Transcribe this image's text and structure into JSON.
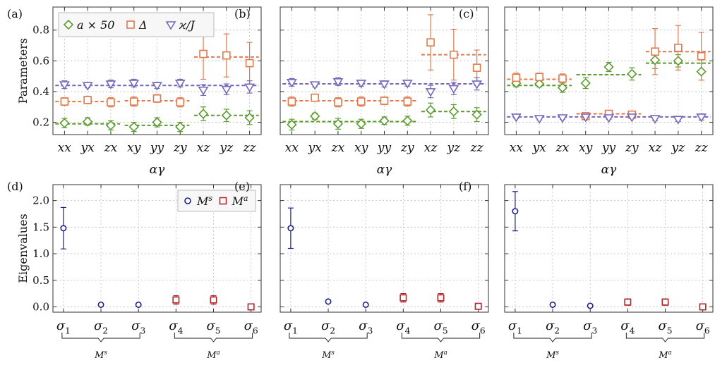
{
  "colors": {
    "a": "#5c9b2f",
    "delta": "#e07a4d",
    "kappa": "#7468b9",
    "Ms": "#1a1f8a",
    "Ma": "#b3262a"
  },
  "chart_data": [
    {
      "panel_label": "(a)",
      "type": "scatter",
      "categories": [
        "xx",
        "yx",
        "zx",
        "xy",
        "yy",
        "zy",
        "xz",
        "yz",
        "zz"
      ],
      "xlabel": "αγ",
      "ylabel": "Parameters",
      "ylim": [
        0.12,
        0.95
      ],
      "yticks": [
        0.2,
        0.4,
        0.6,
        0.8
      ],
      "grid": true,
      "legend": {
        "placement": "top-left",
        "entries": [
          "a × 50",
          "Δ",
          "ϰ/J"
        ]
      },
      "series": [
        {
          "name": "a × 50",
          "key": "a",
          "marker": "diamond",
          "values": [
            0.195,
            0.205,
            0.18,
            0.17,
            0.2,
            0.17,
            0.255,
            0.245,
            0.23
          ],
          "errors": [
            0.03,
            0.025,
            0.03,
            0.03,
            0.03,
            0.03,
            0.045,
            0.04,
            0.045
          ],
          "fits": [
            {
              "from": 0,
              "to": 2,
              "value": 0.19
            },
            {
              "from": 3,
              "to": 5,
              "value": 0.18
            },
            {
              "from": 6,
              "to": 8,
              "value": 0.245
            }
          ]
        },
        {
          "name": "Δ",
          "key": "delta",
          "marker": "square",
          "values": [
            0.335,
            0.345,
            0.33,
            0.335,
            0.355,
            0.33,
            0.645,
            0.635,
            0.585
          ],
          "errors": [
            0.025,
            0.025,
            0.03,
            0.03,
            0.025,
            0.03,
            0.165,
            0.14,
            0.135
          ],
          "fits": [
            {
              "from": 0,
              "to": 2,
              "value": 0.335
            },
            {
              "from": 3,
              "to": 5,
              "value": 0.34
            },
            {
              "from": 6,
              "to": 8,
              "value": 0.625
            }
          ]
        },
        {
          "name": "ϰ/J",
          "key": "kappa",
          "marker": "triangle-down",
          "values": [
            0.445,
            0.44,
            0.45,
            0.455,
            0.44,
            0.455,
            0.41,
            0.415,
            0.43
          ],
          "errors": [
            0.025,
            0.015,
            0.025,
            0.025,
            0.02,
            0.025,
            0.035,
            0.035,
            0.04
          ],
          "fits": [
            {
              "from": 0,
              "to": 8,
              "value": 0.44
            }
          ]
        }
      ]
    },
    {
      "panel_label": "(b)",
      "type": "scatter",
      "categories": [
        "xx",
        "yx",
        "zx",
        "xy",
        "yy",
        "zy",
        "xz",
        "yz",
        "zz"
      ],
      "xlabel": "αγ",
      "ylim": [
        0.12,
        0.95
      ],
      "yticks": [
        0.2,
        0.4,
        0.6,
        0.8
      ],
      "grid": true,
      "series": [
        {
          "key": "a",
          "marker": "diamond",
          "values": [
            0.185,
            0.24,
            0.19,
            0.19,
            0.21,
            0.21,
            0.28,
            0.27,
            0.25
          ],
          "errors": [
            0.035,
            0.02,
            0.035,
            0.03,
            0.025,
            0.03,
            0.045,
            0.045,
            0.045
          ],
          "fits": [
            {
              "from": 0,
              "to": 5,
              "value": 0.205
            },
            {
              "from": 6,
              "to": 8,
              "value": 0.27
            }
          ]
        },
        {
          "key": "delta",
          "marker": "square",
          "values": [
            0.335,
            0.36,
            0.33,
            0.335,
            0.34,
            0.335,
            0.72,
            0.64,
            0.555
          ],
          "errors": [
            0.03,
            0.02,
            0.03,
            0.03,
            0.025,
            0.03,
            0.18,
            0.165,
            0.115
          ],
          "fits": [
            {
              "from": 0,
              "to": 5,
              "value": 0.34
            },
            {
              "from": 6,
              "to": 8,
              "value": 0.64
            }
          ]
        },
        {
          "key": "kappa",
          "marker": "triangle-down",
          "values": [
            0.46,
            0.445,
            0.465,
            0.455,
            0.45,
            0.455,
            0.4,
            0.42,
            0.45
          ],
          "errors": [
            0.025,
            0.015,
            0.025,
            0.02,
            0.02,
            0.02,
            0.04,
            0.04,
            0.04
          ],
          "fits": [
            {
              "from": 0,
              "to": 8,
              "value": 0.45
            }
          ]
        }
      ]
    },
    {
      "panel_label": "(c)",
      "type": "scatter",
      "categories": [
        "xx",
        "yx",
        "zx",
        "xy",
        "yy",
        "zy",
        "xz",
        "yz",
        "zz"
      ],
      "xlabel": "αγ",
      "ylim": [
        0.12,
        0.95
      ],
      "yticks": [
        0.2,
        0.4,
        0.6,
        0.8
      ],
      "grid": true,
      "series": [
        {
          "key": "a",
          "marker": "diamond",
          "values": [
            0.455,
            0.45,
            0.425,
            0.455,
            0.56,
            0.515,
            0.605,
            0.6,
            0.53
          ],
          "errors": [
            0.025,
            0.02,
            0.03,
            0.035,
            0.03,
            0.04,
            0.055,
            0.04,
            0.055
          ],
          "fits": [
            {
              "from": 0,
              "to": 2,
              "value": 0.44
            },
            {
              "from": 3,
              "to": 5,
              "value": 0.51
            },
            {
              "from": 6,
              "to": 8,
              "value": 0.585
            }
          ]
        },
        {
          "key": "delta",
          "marker": "square",
          "values": [
            0.49,
            0.495,
            0.485,
            0.24,
            0.255,
            0.25,
            0.66,
            0.685,
            0.63
          ],
          "errors": [
            0.03,
            0.025,
            0.03,
            0.01,
            0.01,
            0.01,
            0.15,
            0.145,
            0.155
          ],
          "fits": [
            {
              "from": 0,
              "to": 2,
              "value": 0.48
            },
            {
              "from": 3,
              "to": 5,
              "value": 0.255
            },
            {
              "from": 6,
              "to": 8,
              "value": 0.66
            }
          ]
        },
        {
          "key": "kappa",
          "marker": "triangle-down",
          "values": [
            0.235,
            0.225,
            0.23,
            0.235,
            0.23,
            0.235,
            0.225,
            0.22,
            0.235
          ],
          "errors": [
            0.01,
            0.01,
            0.01,
            0.01,
            0.01,
            0.01,
            0.015,
            0.015,
            0.02
          ],
          "fits": [
            {
              "from": 0,
              "to": 8,
              "value": 0.235
            }
          ]
        }
      ]
    },
    {
      "panel_label": "(d)",
      "type": "scatter",
      "categories": [
        "σ1",
        "σ2",
        "σ3",
        "σ4",
        "σ5",
        "σ6"
      ],
      "ylabel": "Eigenvalues",
      "ylim": [
        -0.1,
        2.3
      ],
      "yticks": [
        0.0,
        0.5,
        1.0,
        1.5,
        2.0
      ],
      "grid": true,
      "legend": {
        "placement": "top-right",
        "entries": [
          "Ms",
          "Ma"
        ]
      },
      "groups": [
        {
          "label": "Ms",
          "from": 0,
          "to": 2
        },
        {
          "label": "Ma",
          "from": 3,
          "to": 5
        }
      ],
      "series": [
        {
          "name": "Ms",
          "key": "Ms",
          "marker": "circle",
          "points": [
            {
              "i": 0,
              "v": 1.48,
              "e": 0.39
            },
            {
              "i": 1,
              "v": 0.04,
              "e": 0
            },
            {
              "i": 2,
              "v": 0.04,
              "e": 0
            }
          ]
        },
        {
          "name": "Ma",
          "key": "Ma",
          "marker": "square",
          "points": [
            {
              "i": 3,
              "v": 0.13,
              "e": 0.08
            },
            {
              "i": 4,
              "v": 0.13,
              "e": 0.08
            },
            {
              "i": 5,
              "v": 0.0,
              "e": 0
            }
          ]
        }
      ]
    },
    {
      "panel_label": "(e)",
      "type": "scatter",
      "categories": [
        "σ1",
        "σ2",
        "σ3",
        "σ4",
        "σ5",
        "σ6"
      ],
      "ylim": [
        -0.1,
        2.3
      ],
      "yticks": [
        0.0,
        0.5,
        1.0,
        1.5,
        2.0
      ],
      "grid": true,
      "groups": [
        {
          "label": "Ms",
          "from": 0,
          "to": 2
        },
        {
          "label": "Ma",
          "from": 3,
          "to": 5
        }
      ],
      "series": [
        {
          "key": "Ms",
          "marker": "circle",
          "points": [
            {
              "i": 0,
              "v": 1.48,
              "e": 0.38
            },
            {
              "i": 1,
              "v": 0.1,
              "e": 0
            },
            {
              "i": 2,
              "v": 0.04,
              "e": 0
            }
          ]
        },
        {
          "key": "Ma",
          "marker": "square",
          "points": [
            {
              "i": 3,
              "v": 0.17,
              "e": 0.08
            },
            {
              "i": 4,
              "v": 0.17,
              "e": 0.08
            },
            {
              "i": 5,
              "v": 0.01,
              "e": 0
            }
          ]
        }
      ]
    },
    {
      "panel_label": "(f)",
      "type": "scatter",
      "categories": [
        "σ1",
        "σ2",
        "σ3",
        "σ4",
        "σ5",
        "σ6"
      ],
      "ylim": [
        -0.1,
        2.3
      ],
      "yticks": [
        0.0,
        0.5,
        1.0,
        1.5,
        2.0
      ],
      "grid": true,
      "groups": [
        {
          "label": "Ms",
          "from": 0,
          "to": 2
        },
        {
          "label": "Ma",
          "from": 3,
          "to": 5
        }
      ],
      "series": [
        {
          "key": "Ms",
          "marker": "circle",
          "points": [
            {
              "i": 0,
              "v": 1.8,
              "e": 0.37
            },
            {
              "i": 1,
              "v": 0.04,
              "e": 0
            },
            {
              "i": 2,
              "v": 0.02,
              "e": 0
            }
          ]
        },
        {
          "key": "Ma",
          "marker": "square",
          "points": [
            {
              "i": 3,
              "v": 0.09,
              "e": 0.06
            },
            {
              "i": 4,
              "v": 0.09,
              "e": 0.06
            },
            {
              "i": 5,
              "v": 0.0,
              "e": 0
            }
          ]
        }
      ]
    }
  ]
}
